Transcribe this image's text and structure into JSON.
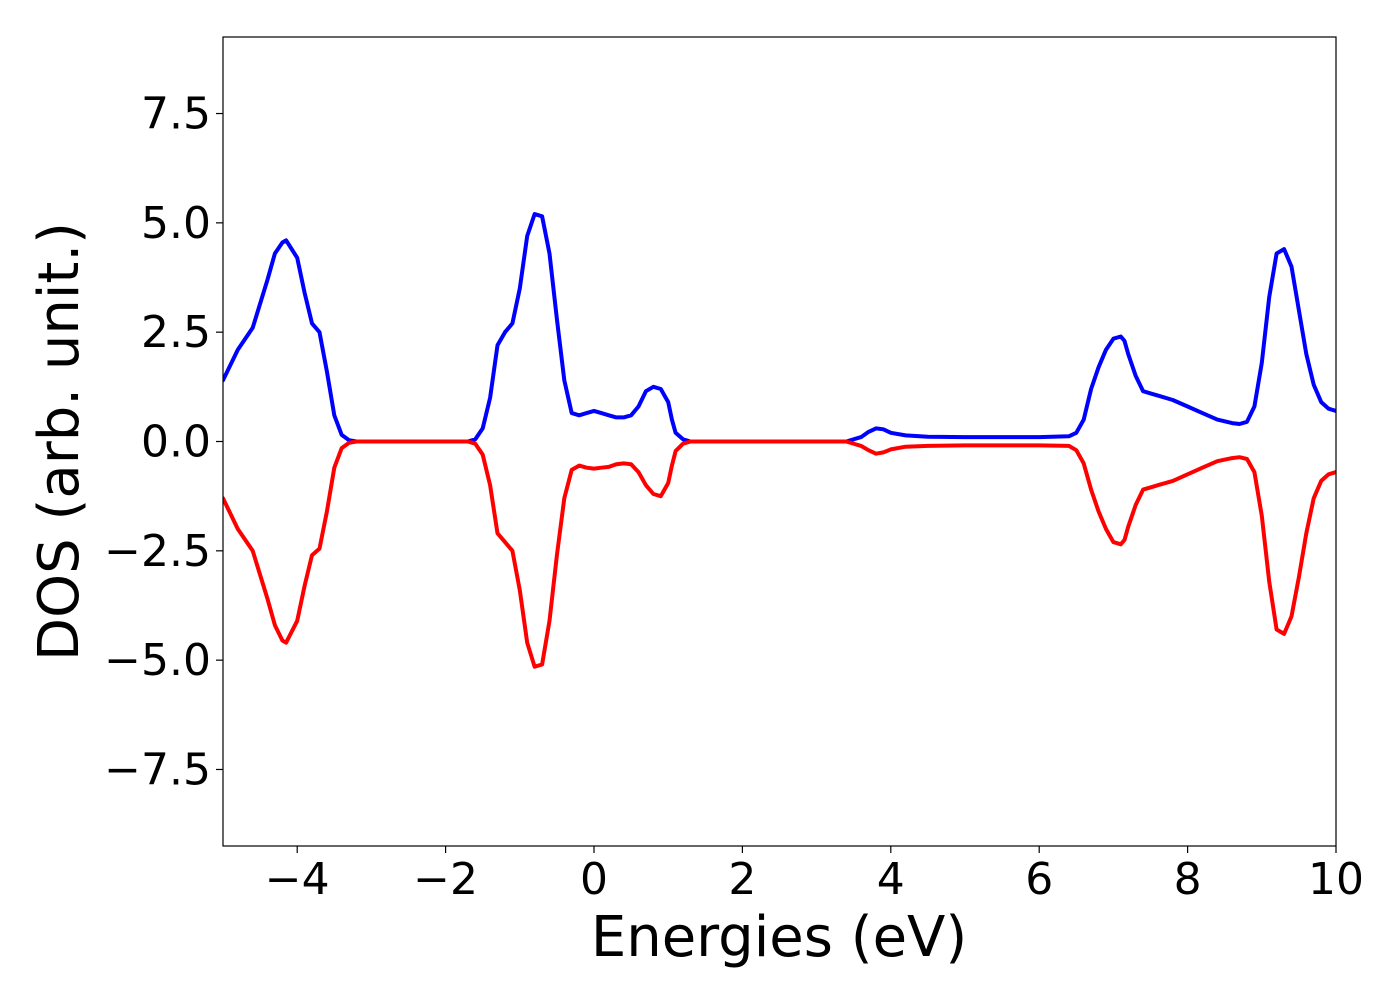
{
  "chart_data": {
    "type": "line",
    "title": "",
    "xlabel": "Energies (eV)",
    "ylabel": "DOS (arb. unit.)",
    "xlim": [
      -5,
      10
    ],
    "ylim": [
      -9.25,
      9.25
    ],
    "grid": false,
    "legend": "none",
    "x_ticks": [
      -4,
      -2,
      0,
      2,
      4,
      6,
      8,
      10
    ],
    "x_tick_labels": [
      "−4",
      "−2",
      "0",
      "2",
      "4",
      "6",
      "8",
      "10"
    ],
    "y_ticks": [
      7.5,
      5.0,
      2.5,
      0.0,
      -2.5,
      -5.0,
      -7.5
    ],
    "y_tick_labels": [
      "7.5",
      "5.0",
      "2.5",
      "0.0",
      "−2.5",
      "−5.0",
      "−7.5"
    ],
    "series": [
      {
        "color": "#0000ff",
        "x": [
          -5.0,
          -4.8,
          -4.6,
          -4.4,
          -4.3,
          -4.2,
          -4.15,
          -4.0,
          -3.9,
          -3.8,
          -3.7,
          -3.6,
          -3.5,
          -3.4,
          -3.3,
          -3.2,
          -3.0,
          -2.0,
          -1.7,
          -1.6,
          -1.5,
          -1.4,
          -1.3,
          -1.2,
          -1.1,
          -1.0,
          -0.9,
          -0.8,
          -0.7,
          -0.6,
          -0.5,
          -0.4,
          -0.3,
          -0.2,
          -0.1,
          0.0,
          0.1,
          0.2,
          0.3,
          0.4,
          0.5,
          0.6,
          0.7,
          0.8,
          0.9,
          1.0,
          1.05,
          1.1,
          1.2,
          1.3,
          1.4,
          1.5,
          1.6,
          2.0,
          3.0,
          3.4,
          3.6,
          3.7,
          3.8,
          3.9,
          4.0,
          4.2,
          4.5,
          5.0,
          6.0,
          6.4,
          6.5,
          6.6,
          6.7,
          6.8,
          6.9,
          7.0,
          7.1,
          7.15,
          7.2,
          7.3,
          7.4,
          7.5,
          7.6,
          7.8,
          8.0,
          8.2,
          8.4,
          8.6,
          8.7,
          8.8,
          8.9,
          9.0,
          9.1,
          9.2,
          9.3,
          9.4,
          9.5,
          9.6,
          9.7,
          9.8,
          9.9,
          10.0
        ],
        "y": [
          1.4,
          2.1,
          2.6,
          3.7,
          4.3,
          4.55,
          4.6,
          4.2,
          3.4,
          2.7,
          2.5,
          1.6,
          0.6,
          0.15,
          0.03,
          0.0,
          0.0,
          0.0,
          0.0,
          0.05,
          0.3,
          1.0,
          2.2,
          2.5,
          2.7,
          3.5,
          4.7,
          5.2,
          5.15,
          4.3,
          2.8,
          1.4,
          0.65,
          0.6,
          0.65,
          0.7,
          0.65,
          0.6,
          0.55,
          0.55,
          0.6,
          0.8,
          1.15,
          1.25,
          1.2,
          0.9,
          0.5,
          0.2,
          0.05,
          0.0,
          0.0,
          0.0,
          0.0,
          0.0,
          0.0,
          0.0,
          0.1,
          0.22,
          0.3,
          0.28,
          0.2,
          0.14,
          0.11,
          0.1,
          0.1,
          0.12,
          0.2,
          0.5,
          1.2,
          1.7,
          2.1,
          2.35,
          2.4,
          2.3,
          2.0,
          1.5,
          1.15,
          1.1,
          1.05,
          0.95,
          0.8,
          0.65,
          0.5,
          0.42,
          0.4,
          0.45,
          0.8,
          1.8,
          3.3,
          4.3,
          4.4,
          4.0,
          3.0,
          2.0,
          1.3,
          0.9,
          0.75,
          0.7
        ]
      },
      {
        "color": "#ff0000",
        "x": [
          -5.0,
          -4.8,
          -4.6,
          -4.4,
          -4.3,
          -4.2,
          -4.15,
          -4.0,
          -3.9,
          -3.8,
          -3.7,
          -3.6,
          -3.5,
          -3.4,
          -3.3,
          -3.2,
          -3.0,
          -2.0,
          -1.7,
          -1.6,
          -1.5,
          -1.4,
          -1.3,
          -1.2,
          -1.1,
          -1.0,
          -0.9,
          -0.8,
          -0.7,
          -0.6,
          -0.5,
          -0.4,
          -0.3,
          -0.2,
          -0.1,
          0.0,
          0.1,
          0.2,
          0.3,
          0.4,
          0.5,
          0.6,
          0.7,
          0.8,
          0.9,
          1.0,
          1.05,
          1.1,
          1.2,
          1.3,
          1.4,
          1.5,
          1.6,
          2.0,
          3.0,
          3.4,
          3.6,
          3.7,
          3.8,
          3.9,
          4.0,
          4.2,
          4.5,
          5.0,
          6.0,
          6.4,
          6.5,
          6.6,
          6.7,
          6.8,
          6.9,
          7.0,
          7.1,
          7.15,
          7.2,
          7.3,
          7.4,
          7.5,
          7.6,
          7.8,
          8.0,
          8.2,
          8.4,
          8.6,
          8.7,
          8.8,
          8.9,
          9.0,
          9.1,
          9.2,
          9.3,
          9.4,
          9.5,
          9.6,
          9.7,
          9.8,
          9.9,
          10.0
        ],
        "y": [
          -1.3,
          -2.0,
          -2.5,
          -3.6,
          -4.2,
          -4.55,
          -4.6,
          -4.1,
          -3.3,
          -2.6,
          -2.45,
          -1.6,
          -0.6,
          -0.15,
          -0.03,
          0.0,
          0.0,
          0.0,
          0.0,
          -0.05,
          -0.3,
          -1.0,
          -2.1,
          -2.3,
          -2.5,
          -3.4,
          -4.6,
          -5.15,
          -5.1,
          -4.1,
          -2.6,
          -1.3,
          -0.65,
          -0.55,
          -0.6,
          -0.62,
          -0.6,
          -0.58,
          -0.52,
          -0.5,
          -0.52,
          -0.7,
          -1.0,
          -1.2,
          -1.25,
          -0.95,
          -0.55,
          -0.22,
          -0.05,
          0.0,
          0.0,
          0.0,
          0.0,
          0.0,
          0.0,
          0.0,
          -0.1,
          -0.2,
          -0.28,
          -0.25,
          -0.18,
          -0.12,
          -0.1,
          -0.09,
          -0.09,
          -0.1,
          -0.2,
          -0.5,
          -1.1,
          -1.6,
          -2.0,
          -2.3,
          -2.35,
          -2.25,
          -1.95,
          -1.45,
          -1.1,
          -1.05,
          -1.0,
          -0.9,
          -0.75,
          -0.6,
          -0.45,
          -0.38,
          -0.36,
          -0.4,
          -0.7,
          -1.7,
          -3.2,
          -4.3,
          -4.4,
          -4.0,
          -3.1,
          -2.1,
          -1.3,
          -0.9,
          -0.75,
          -0.7
        ]
      }
    ]
  }
}
